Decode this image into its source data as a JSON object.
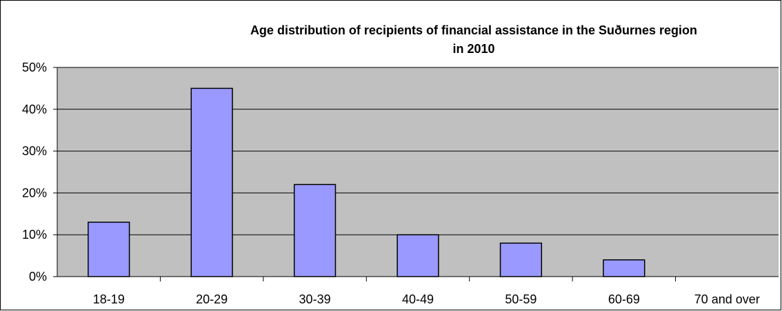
{
  "chart_data": {
    "type": "bar",
    "title": "Age distribution of recipients of financial assistance in the Suðurnes region",
    "subtitle": "in 2010",
    "xlabel": "",
    "ylabel": "",
    "categories": [
      "18-19",
      "20-29",
      "30-39",
      "40-49",
      "50-59",
      "60-69",
      "70 and over"
    ],
    "values": [
      13,
      45,
      22,
      10,
      8,
      4,
      0
    ],
    "value_unit": "%",
    "ylim": [
      0,
      50
    ],
    "yticks": [
      "0%",
      "10%",
      "20%",
      "30%",
      "40%",
      "50%"
    ],
    "grid": true,
    "legend": "none",
    "colors": {
      "plot_background": "#c0c0c0",
      "bar_fill": "#9999ff",
      "bar_stroke": "#000000",
      "gridline": "#000000"
    }
  }
}
